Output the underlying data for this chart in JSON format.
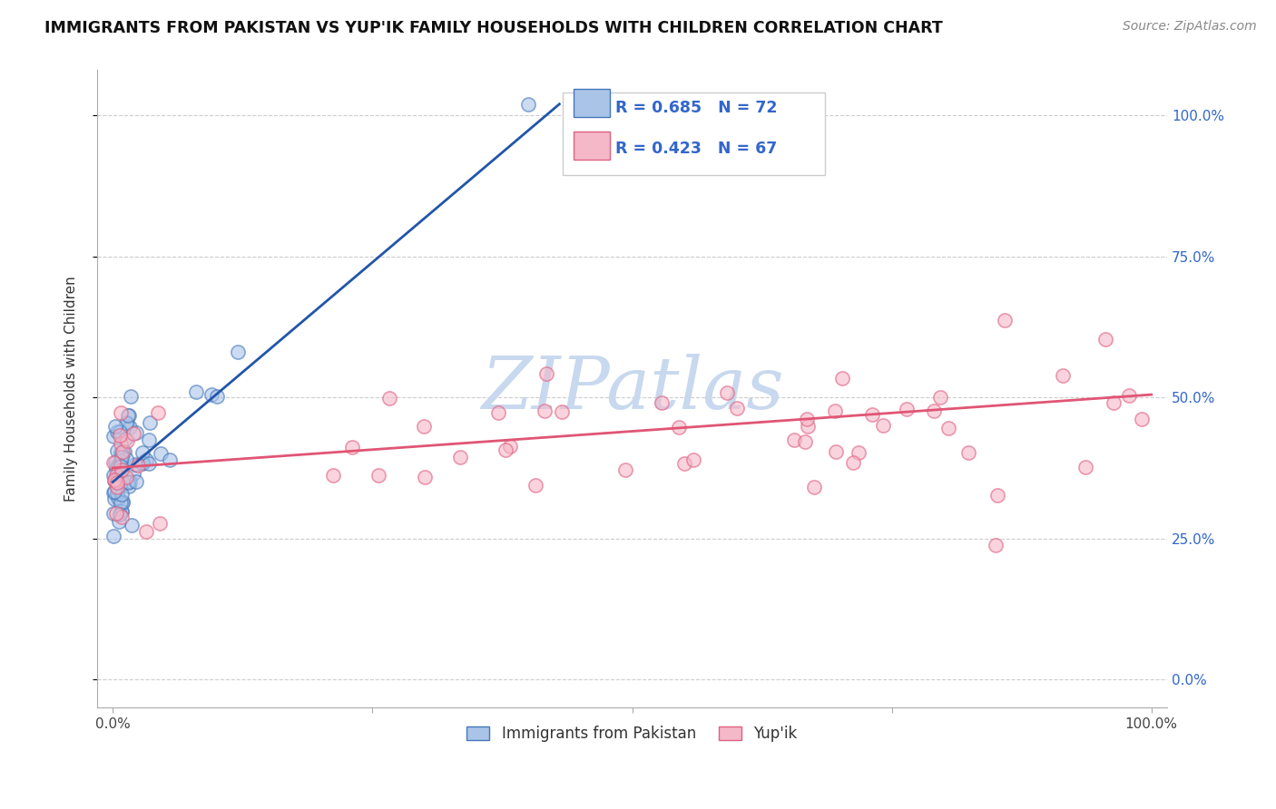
{
  "title": "IMMIGRANTS FROM PAKISTAN VS YUP'IK FAMILY HOUSEHOLDS WITH CHILDREN CORRELATION CHART",
  "source": "Source: ZipAtlas.com",
  "ylabel": "Family Households with Children",
  "legend_label1": "Immigrants from Pakistan",
  "legend_label2": "Yup'ik",
  "R1": 0.685,
  "N1": 72,
  "R2": 0.423,
  "N2": 67,
  "color_blue_fill": "#aac4e8",
  "color_blue_edge": "#4477bb",
  "color_pink_fill": "#f5b8c8",
  "color_pink_edge": "#e06080",
  "color_blue_line": "#2255aa",
  "color_pink_line": "#e05575",
  "color_blue_text": "#3366CC",
  "watermark_color": "#c8d8ee",
  "xlim": [
    0.0,
    1.0
  ],
  "ylim": [
    -0.05,
    1.08
  ],
  "yticks": [
    0.0,
    0.25,
    0.5,
    0.75,
    1.0
  ],
  "ytick_labels_right": [
    "0.0%",
    "25.0%",
    "50.0%",
    "75.0%",
    "100.0%"
  ],
  "xtick_labels": [
    "0.0%",
    "",
    "",
    "",
    "100.0%"
  ],
  "grid_color": "#cccccc",
  "blue_line_x0": 0.0,
  "blue_line_y0": 0.35,
  "blue_line_x1": 0.43,
  "blue_line_y1": 1.02,
  "pink_line_x0": 0.0,
  "pink_line_y0": 0.375,
  "pink_line_x1": 1.0,
  "pink_line_y1": 0.505
}
